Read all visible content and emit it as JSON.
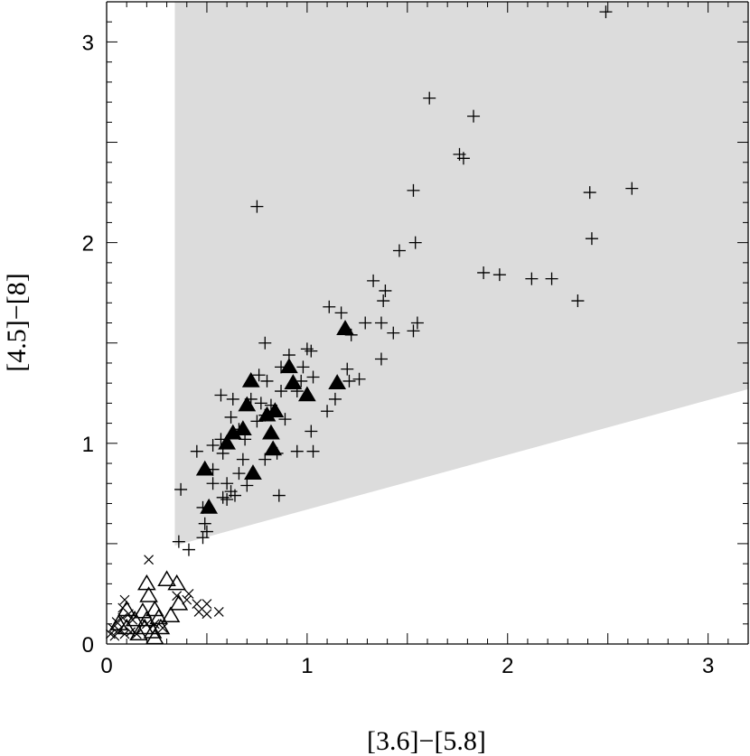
{
  "chart_data": {
    "type": "scatter",
    "xlabel": "[3.6]−[5.8]",
    "ylabel": "[4.5]−[8]",
    "xlim": [
      0,
      3.2
    ],
    "ylim": [
      0,
      3.2
    ],
    "x_ticks": [
      "0",
      "1",
      "2",
      "3"
    ],
    "y_ticks": [
      "0",
      "1",
      "2",
      "3"
    ],
    "x_tick_values": [
      0,
      1,
      2,
      3
    ],
    "y_tick_values": [
      0,
      1,
      2,
      3
    ],
    "grid": false,
    "shaded_region": {
      "color": "#dcdcdc",
      "vertices": [
        [
          0.34,
          3.2
        ],
        [
          3.2,
          3.2
        ],
        [
          3.2,
          1.27
        ],
        [
          0.34,
          0.49
        ]
      ]
    },
    "series": [
      {
        "marker": "plus",
        "color": "#000000",
        "points": [
          [
            2.49,
            3.15
          ],
          [
            1.61,
            2.72
          ],
          [
            1.83,
            2.63
          ],
          [
            1.76,
            2.44
          ],
          [
            1.78,
            2.42
          ],
          [
            1.53,
            2.26
          ],
          [
            2.41,
            2.25
          ],
          [
            2.62,
            2.27
          ],
          [
            0.75,
            2.18
          ],
          [
            1.46,
            1.96
          ],
          [
            1.54,
            2.0
          ],
          [
            2.42,
            2.02
          ],
          [
            1.88,
            1.85
          ],
          [
            1.96,
            1.84
          ],
          [
            2.12,
            1.82
          ],
          [
            2.22,
            1.82
          ],
          [
            2.35,
            1.71
          ],
          [
            1.33,
            1.81
          ],
          [
            1.39,
            1.76
          ],
          [
            1.11,
            1.68
          ],
          [
            1.17,
            1.65
          ],
          [
            1.38,
            1.71
          ],
          [
            1.29,
            1.6
          ],
          [
            1.37,
            1.6
          ],
          [
            1.43,
            1.55
          ],
          [
            1.53,
            1.56
          ],
          [
            1.55,
            1.6
          ],
          [
            1.22,
            1.54
          ],
          [
            1.37,
            1.42
          ],
          [
            0.79,
            1.5
          ],
          [
            0.91,
            1.44
          ],
          [
            1.0,
            1.47
          ],
          [
            1.02,
            1.46
          ],
          [
            0.87,
            1.38
          ],
          [
            0.98,
            1.38
          ],
          [
            1.2,
            1.37
          ],
          [
            1.21,
            1.31
          ],
          [
            1.26,
            1.32
          ],
          [
            1.03,
            1.33
          ],
          [
            0.97,
            1.31
          ],
          [
            0.8,
            1.31
          ],
          [
            0.76,
            1.34
          ],
          [
            0.87,
            1.26
          ],
          [
            0.95,
            1.26
          ],
          [
            0.63,
            1.22
          ],
          [
            0.57,
            1.24
          ],
          [
            0.72,
            1.22
          ],
          [
            0.77,
            1.2
          ],
          [
            0.82,
            1.19
          ],
          [
            1.14,
            1.22
          ],
          [
            1.1,
            1.16
          ],
          [
            0.79,
            1.14
          ],
          [
            0.75,
            1.11
          ],
          [
            0.89,
            1.12
          ],
          [
            0.62,
            1.13
          ],
          [
            1.02,
            1.06
          ],
          [
            0.66,
            1.07
          ],
          [
            0.57,
            1.02
          ],
          [
            0.69,
            1.02
          ],
          [
            0.53,
            0.99
          ],
          [
            0.45,
            0.96
          ],
          [
            0.58,
            0.95
          ],
          [
            0.85,
            0.95
          ],
          [
            0.95,
            0.96
          ],
          [
            1.03,
            0.96
          ],
          [
            0.68,
            0.92
          ],
          [
            0.79,
            0.92
          ],
          [
            0.53,
            0.87
          ],
          [
            0.66,
            0.85
          ],
          [
            0.53,
            0.8
          ],
          [
            0.6,
            0.8
          ],
          [
            0.7,
            0.79
          ],
          [
            0.62,
            0.76
          ],
          [
            0.64,
            0.74
          ],
          [
            0.6,
            0.72
          ],
          [
            0.58,
            0.73
          ],
          [
            0.86,
            0.74
          ],
          [
            0.37,
            0.77
          ],
          [
            0.48,
            0.68
          ],
          [
            0.49,
            0.6
          ],
          [
            0.5,
            0.56
          ],
          [
            0.48,
            0.53
          ],
          [
            0.36,
            0.51
          ],
          [
            0.41,
            0.47
          ]
        ]
      },
      {
        "marker": "filled-triangle",
        "color": "#000000",
        "points": [
          [
            1.19,
            1.57
          ],
          [
            0.91,
            1.38
          ],
          [
            0.93,
            1.3
          ],
          [
            1.0,
            1.24
          ],
          [
            0.72,
            1.31
          ],
          [
            1.15,
            1.3
          ],
          [
            0.7,
            1.19
          ],
          [
            0.8,
            1.14
          ],
          [
            0.84,
            1.16
          ],
          [
            0.63,
            1.05
          ],
          [
            0.68,
            1.07
          ],
          [
            0.82,
            1.05
          ],
          [
            0.6,
            1.0
          ],
          [
            0.83,
            0.97
          ],
          [
            0.49,
            0.87
          ],
          [
            0.73,
            0.85
          ],
          [
            0.51,
            0.68
          ]
        ]
      },
      {
        "marker": "open-triangle",
        "color": "#000000",
        "points": [
          [
            0.2,
            0.3
          ],
          [
            0.3,
            0.32
          ],
          [
            0.35,
            0.3
          ],
          [
            0.21,
            0.24
          ],
          [
            0.36,
            0.2
          ],
          [
            0.1,
            0.17
          ],
          [
            0.18,
            0.16
          ],
          [
            0.24,
            0.17
          ],
          [
            0.14,
            0.12
          ],
          [
            0.2,
            0.12
          ],
          [
            0.26,
            0.13
          ],
          [
            0.32,
            0.14
          ],
          [
            0.06,
            0.1
          ],
          [
            0.1,
            0.08
          ],
          [
            0.19,
            0.08
          ],
          [
            0.27,
            0.08
          ],
          [
            0.23,
            0.06
          ],
          [
            0.16,
            0.05
          ],
          [
            0.24,
            0.03
          ]
        ]
      },
      {
        "marker": "cross",
        "color": "#000000",
        "points": [
          [
            0.21,
            0.42
          ],
          [
            0.41,
            0.25
          ],
          [
            0.35,
            0.24
          ],
          [
            0.4,
            0.22
          ],
          [
            0.45,
            0.2
          ],
          [
            0.5,
            0.2
          ],
          [
            0.46,
            0.16
          ],
          [
            0.5,
            0.15
          ],
          [
            0.56,
            0.16
          ],
          [
            0.09,
            0.22
          ],
          [
            0.08,
            0.18
          ],
          [
            0.11,
            0.15
          ],
          [
            0.05,
            0.11
          ],
          [
            0.08,
            0.13
          ],
          [
            0.13,
            0.12
          ],
          [
            0.03,
            0.08
          ],
          [
            0.06,
            0.07
          ],
          [
            0.09,
            0.05
          ],
          [
            0.02,
            0.05
          ],
          [
            0.04,
            0.04
          ],
          [
            0.12,
            0.06
          ],
          [
            0.15,
            0.05
          ],
          [
            0.2,
            0.1
          ],
          [
            0.24,
            0.1
          ],
          [
            0.28,
            0.08
          ]
        ]
      }
    ]
  }
}
